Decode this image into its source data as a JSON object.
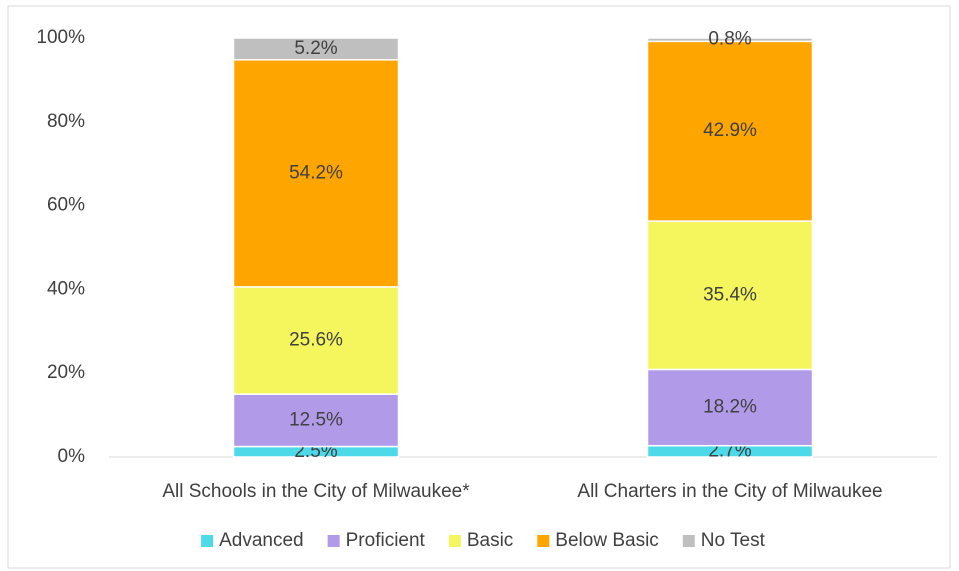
{
  "chart_data": {
    "type": "stacked_bar",
    "categories": [
      "All Schools in the City of Milwaukee*",
      "All Charters in the City of Milwaukee"
    ],
    "series": [
      {
        "name": "Advanced",
        "color": "#4dd9e8",
        "values": [
          2.5,
          2.7
        ],
        "value_labels": [
          "2.5%",
          "2.7%"
        ]
      },
      {
        "name": "Proficient",
        "color": "#b19be8",
        "values": [
          12.5,
          18.2
        ],
        "value_labels": [
          "12.5%",
          "18.2%"
        ]
      },
      {
        "name": "Basic",
        "color": "#f5f55e",
        "values": [
          25.6,
          35.4
        ],
        "value_labels": [
          "25.6%",
          "35.4%"
        ]
      },
      {
        "name": "Below Basic",
        "color": "#ffa500",
        "values": [
          54.2,
          42.9
        ],
        "value_labels": [
          "54.2%",
          "42.9%"
        ]
      },
      {
        "name": "No Test",
        "color": "#bfbfbf",
        "values": [
          5.2,
          0.8
        ],
        "value_labels": [
          "5.2%",
          "0.8%"
        ]
      }
    ],
    "ylim": [
      0,
      100
    ],
    "yticks": [
      {
        "value": 0,
        "label": "0%"
      },
      {
        "value": 20,
        "label": "20%"
      },
      {
        "value": 40,
        "label": "40%"
      },
      {
        "value": 60,
        "label": "60%"
      },
      {
        "value": 80,
        "label": "80%"
      },
      {
        "value": 100,
        "label": "100%"
      }
    ],
    "legend": "bottom"
  }
}
